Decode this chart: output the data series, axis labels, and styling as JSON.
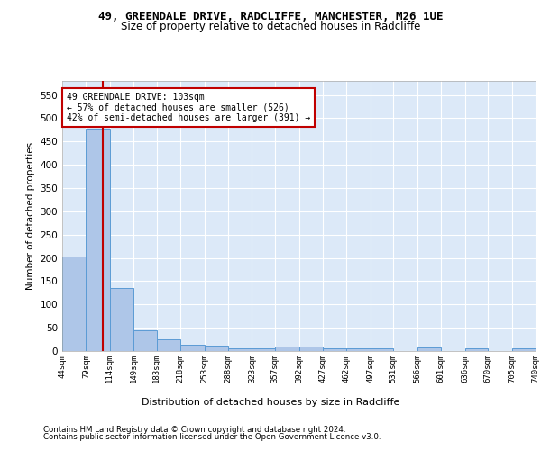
{
  "title1": "49, GREENDALE DRIVE, RADCLIFFE, MANCHESTER, M26 1UE",
  "title2": "Size of property relative to detached houses in Radcliffe",
  "xlabel": "Distribution of detached houses by size in Radcliffe",
  "ylabel": "Number of detached properties",
  "footnote1": "Contains HM Land Registry data © Crown copyright and database right 2024.",
  "footnote2": "Contains public sector information licensed under the Open Government Licence v3.0.",
  "annotation_line1": "49 GREENDALE DRIVE: 103sqm",
  "annotation_line2": "← 57% of detached houses are smaller (526)",
  "annotation_line3": "42% of semi-detached houses are larger (391) →",
  "subject_size": 103,
  "bar_left_edges": [
    44,
    79,
    114,
    149,
    183,
    218,
    253,
    288,
    323,
    357,
    392,
    427,
    462,
    497,
    531,
    566,
    601,
    636,
    670,
    705
  ],
  "bar_widths": [
    35,
    35,
    35,
    34,
    35,
    35,
    35,
    35,
    34,
    35,
    35,
    35,
    35,
    34,
    35,
    35,
    35,
    34,
    35,
    35
  ],
  "bar_heights": [
    203,
    478,
    135,
    44,
    25,
    14,
    11,
    6,
    5,
    10,
    10,
    5,
    5,
    5,
    0,
    8,
    0,
    5,
    0,
    5
  ],
  "tick_labels": [
    "44sqm",
    "79sqm",
    "114sqm",
    "149sqm",
    "183sqm",
    "218sqm",
    "253sqm",
    "288sqm",
    "323sqm",
    "357sqm",
    "392sqm",
    "427sqm",
    "462sqm",
    "497sqm",
    "531sqm",
    "566sqm",
    "601sqm",
    "636sqm",
    "670sqm",
    "705sqm",
    "740sqm"
  ],
  "bar_color": "#aec6e8",
  "bar_edge_color": "#5b9bd5",
  "subject_line_color": "#c00000",
  "annotation_box_color": "#c00000",
  "bg_color": "#dce9f8",
  "grid_color": "#ffffff",
  "ylim": [
    0,
    580
  ],
  "yticks": [
    0,
    50,
    100,
    150,
    200,
    250,
    300,
    350,
    400,
    450,
    500,
    550
  ],
  "xlim_left": 44,
  "xlim_right": 740
}
